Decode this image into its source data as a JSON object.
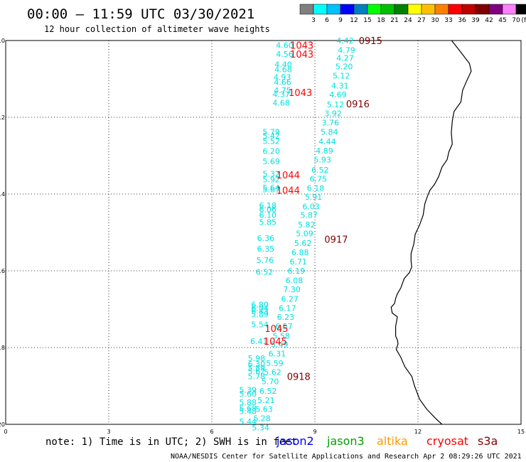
{
  "title": "00:00 – 11:59 UTC 03/30/2021",
  "subtitle": "12 hour collection of altimeter wave heights",
  "colorbar": {
    "colors": [
      "#808080",
      "#00ffff",
      "#00c0ff",
      "#0000ff",
      "#0080c0",
      "#00ff00",
      "#00c000",
      "#008000",
      "#ffff00",
      "#ffc000",
      "#ff8000",
      "#ff0000",
      "#c00000",
      "#800000",
      "#800080",
      "#ff80ff",
      "#000000"
    ],
    "labels": [
      "3",
      "6",
      "9",
      "12",
      "15",
      "18",
      "21",
      "24",
      "27",
      "30",
      "33",
      "36",
      "39",
      "42",
      "45",
      "70"
    ],
    "unit": "(ft)"
  },
  "note": "note: 1) Time is in UTC; 2) SWH is in feet",
  "legend": [
    {
      "name": "jason2",
      "color": "#0000ff"
    },
    {
      "name": "jason3",
      "color": "#00a000"
    },
    {
      "name": "altika",
      "color": "#ff9900"
    },
    {
      "name": "cryosat",
      "color": "#ff0000"
    },
    {
      "name": "s3a",
      "color": "#800000"
    }
  ],
  "footer": "NOAA/NESDIS Center for Satellite Applications and Research   Apr  2 08:29:26 UTC 2021",
  "chart_data": {
    "type": "scatter",
    "xlim": [
      0,
      15
    ],
    "ylim": [
      -20,
      -10
    ],
    "xticks": [
      "0",
      "3",
      "6",
      "9",
      "12",
      "15"
    ],
    "yticks": [
      "-10",
      "-12",
      "-14",
      "-16",
      "-18",
      "-20"
    ],
    "grid": true,
    "series": [
      {
        "name": "s3a",
        "color": "#00e0e0",
        "points": [
          [
            9.88,
            -10.0,
            "4.42"
          ],
          [
            9.92,
            -10.25,
            "4.79"
          ],
          [
            9.88,
            -10.45,
            "4.27"
          ],
          [
            9.85,
            -10.68,
            "5.20"
          ],
          [
            9.77,
            -10.92,
            "5.12"
          ],
          [
            9.73,
            -11.18,
            "4.31"
          ],
          [
            9.67,
            -11.41,
            "4.69"
          ],
          [
            9.6,
            -11.67,
            "5.12"
          ],
          [
            9.53,
            -11.9,
            "3.92"
          ],
          [
            9.45,
            -12.14,
            "3.76"
          ],
          [
            9.42,
            -12.38,
            "5.84"
          ],
          [
            9.36,
            -12.63,
            "4.44"
          ],
          [
            9.28,
            -12.87,
            "4.89"
          ],
          [
            9.22,
            -13.1,
            "5.93"
          ],
          [
            9.15,
            -13.37,
            "6.52"
          ],
          [
            9.1,
            -13.6,
            "6.75"
          ],
          [
            9.02,
            -13.84,
            "6.18"
          ],
          [
            8.96,
            -14.07,
            "5.91"
          ],
          [
            8.89,
            -14.32,
            "6.03"
          ],
          [
            8.83,
            -14.55,
            "5.87"
          ],
          [
            8.76,
            -14.8,
            "5.82"
          ],
          [
            8.7,
            -15.03,
            "5.09"
          ],
          [
            8.65,
            -15.28,
            "5.62"
          ],
          [
            8.57,
            -15.52,
            "6.88"
          ],
          [
            8.52,
            -15.76,
            "6.71"
          ],
          [
            8.46,
            -16.0,
            "6.19"
          ],
          [
            8.4,
            -16.25,
            "6.08"
          ],
          [
            8.33,
            -16.48,
            "7.30"
          ],
          [
            8.27,
            -16.73,
            "6.27"
          ],
          [
            8.2,
            -16.97,
            "6.17"
          ],
          [
            8.15,
            -17.2,
            "6.23"
          ],
          [
            8.1,
            -17.44,
            "6.57"
          ],
          [
            8.02,
            -17.69,
            "5.58"
          ],
          [
            7.97,
            -17.92,
            "5.49"
          ],
          [
            7.9,
            -18.16,
            "6.31"
          ],
          [
            7.83,
            -18.41,
            "5.59"
          ],
          [
            7.77,
            -18.64,
            "5.62"
          ],
          [
            7.7,
            -18.88,
            "5.70"
          ],
          [
            7.64,
            -19.13,
            "6.52"
          ],
          [
            7.58,
            -19.37,
            "5.21"
          ],
          [
            7.52,
            -19.6,
            "5.63"
          ],
          [
            7.46,
            -19.84,
            "5.28"
          ],
          [
            7.42,
            -20.08,
            "5.34"
          ]
        ]
      },
      {
        "name": "jason3",
        "color": "#00e0e0",
        "points": [
          [
            8.12,
            -10.12,
            "4.60"
          ],
          [
            8.12,
            -10.35,
            "4.56"
          ],
          [
            8.08,
            -10.62,
            "4.40"
          ],
          [
            8.08,
            -10.75,
            "4.68"
          ],
          [
            8.05,
            -10.95,
            "4.93"
          ],
          [
            8.06,
            -11.08,
            "4.66"
          ],
          [
            8.06,
            -11.3,
            "4.75"
          ],
          [
            8.02,
            -11.4,
            "4.37"
          ],
          [
            8.02,
            -11.62,
            "4.68"
          ],
          [
            7.73,
            -12.38,
            "5.79"
          ],
          [
            7.73,
            -12.48,
            "5.42"
          ],
          [
            7.73,
            -12.62,
            "5.52"
          ],
          [
            7.73,
            -12.88,
            "6.20"
          ],
          [
            7.73,
            -13.15,
            "5.69"
          ],
          [
            7.73,
            -13.47,
            "5.32"
          ],
          [
            7.73,
            -13.62,
            "5.92"
          ],
          [
            7.73,
            -13.83,
            "5.64"
          ],
          [
            7.73,
            -13.88,
            "5.67"
          ],
          [
            7.63,
            -14.3,
            "6.18"
          ],
          [
            7.63,
            -14.4,
            "6.06"
          ],
          [
            7.63,
            -14.55,
            "6.10"
          ],
          [
            7.63,
            -14.73,
            "5.85"
          ],
          [
            7.57,
            -15.15,
            "6.36"
          ],
          [
            7.57,
            -15.43,
            "6.35"
          ],
          [
            7.55,
            -15.72,
            "5.76"
          ],
          [
            7.53,
            -16.03,
            "6.52"
          ],
          [
            7.4,
            -16.88,
            "6.80"
          ],
          [
            7.4,
            -16.97,
            "6.04"
          ],
          [
            7.4,
            -17.05,
            "6.43"
          ],
          [
            7.4,
            -17.13,
            "5.89"
          ],
          [
            7.4,
            -17.4,
            "5.54"
          ],
          [
            7.37,
            -17.83,
            "6.41"
          ],
          [
            7.3,
            -18.28,
            "5.98"
          ],
          [
            7.3,
            -18.43,
            "6.30"
          ],
          [
            7.3,
            -18.53,
            "5.89"
          ],
          [
            7.3,
            -18.62,
            "5.62"
          ],
          [
            7.3,
            -18.75,
            "5.78"
          ],
          [
            7.05,
            -19.1,
            "5.39"
          ],
          [
            7.05,
            -19.2,
            "5.60"
          ],
          [
            7.05,
            -19.43,
            "5.88"
          ],
          [
            7.05,
            -19.58,
            "5.68"
          ],
          [
            7.05,
            -19.66,
            "5.48"
          ],
          [
            7.05,
            -19.93,
            "5.44"
          ]
        ]
      }
    ],
    "times": [
      {
        "label": "0915",
        "sat": "s3a",
        "color": "#800000",
        "x": 10.62,
        "y": -10.0
      },
      {
        "label": "0916",
        "sat": "s3a",
        "color": "#800000",
        "x": 10.25,
        "y": -11.65
      },
      {
        "label": "0917",
        "sat": "s3a",
        "color": "#800000",
        "x": 9.62,
        "y": -15.18
      },
      {
        "label": "0918",
        "sat": "s3a",
        "color": "#800000",
        "x": 8.53,
        "y": -18.75
      },
      {
        "label": "1043",
        "sat": "cryosat",
        "color": "#ff0000",
        "x": 8.62,
        "y": -10.12
      },
      {
        "label": "1043",
        "sat": "cryosat",
        "color": "#ff0000",
        "x": 8.62,
        "y": -10.35
      },
      {
        "label": "1043",
        "sat": "cryosat",
        "color": "#ff0000",
        "x": 8.58,
        "y": -11.35
      },
      {
        "label": "1044",
        "sat": "cryosat",
        "color": "#ff0000",
        "x": 8.22,
        "y": -13.5
      },
      {
        "label": "1044",
        "sat": "cryosat",
        "color": "#ff0000",
        "x": 8.22,
        "y": -13.9
      },
      {
        "label": "1045",
        "sat": "cryosat",
        "color": "#ff0000",
        "x": 7.88,
        "y": -17.5
      },
      {
        "label": "1045",
        "sat": "cryosat",
        "color": "#ff0000",
        "x": 7.85,
        "y": -17.83
      }
    ],
    "coastline": [
      [
        12.98,
        -10.0
      ],
      [
        13.2,
        -10.25
      ],
      [
        13.5,
        -10.6
      ],
      [
        13.55,
        -10.8
      ],
      [
        13.42,
        -11.05
      ],
      [
        13.3,
        -11.3
      ],
      [
        13.25,
        -11.6
      ],
      [
        13.05,
        -11.85
      ],
      [
        13.0,
        -12.1
      ],
      [
        12.97,
        -12.4
      ],
      [
        13.0,
        -12.7
      ],
      [
        12.9,
        -12.9
      ],
      [
        12.85,
        -13.1
      ],
      [
        12.7,
        -13.3
      ],
      [
        12.6,
        -13.55
      ],
      [
        12.48,
        -13.75
      ],
      [
        12.35,
        -13.9
      ],
      [
        12.28,
        -14.05
      ],
      [
        12.2,
        -14.25
      ],
      [
        12.15,
        -14.55
      ],
      [
        12.05,
        -14.8
      ],
      [
        11.92,
        -15.05
      ],
      [
        11.88,
        -15.3
      ],
      [
        11.8,
        -15.55
      ],
      [
        11.8,
        -15.75
      ],
      [
        11.82,
        -15.9
      ],
      [
        11.75,
        -16.05
      ],
      [
        11.6,
        -16.2
      ],
      [
        11.5,
        -16.45
      ],
      [
        11.4,
        -16.6
      ],
      [
        11.35,
        -16.72
      ],
      [
        11.32,
        -16.85
      ],
      [
        11.22,
        -16.95
      ],
      [
        11.25,
        -17.1
      ],
      [
        11.4,
        -17.2
      ],
      [
        11.35,
        -17.45
      ],
      [
        11.35,
        -17.7
      ],
      [
        11.4,
        -17.8
      ],
      [
        11.42,
        -17.9
      ],
      [
        11.37,
        -18.05
      ],
      [
        11.5,
        -18.25
      ],
      [
        11.62,
        -18.5
      ],
      [
        11.82,
        -18.75
      ],
      [
        11.9,
        -19.0
      ],
      [
        12.05,
        -19.35
      ],
      [
        12.25,
        -19.6
      ],
      [
        12.52,
        -19.85
      ],
      [
        12.7,
        -20.0
      ]
    ]
  }
}
